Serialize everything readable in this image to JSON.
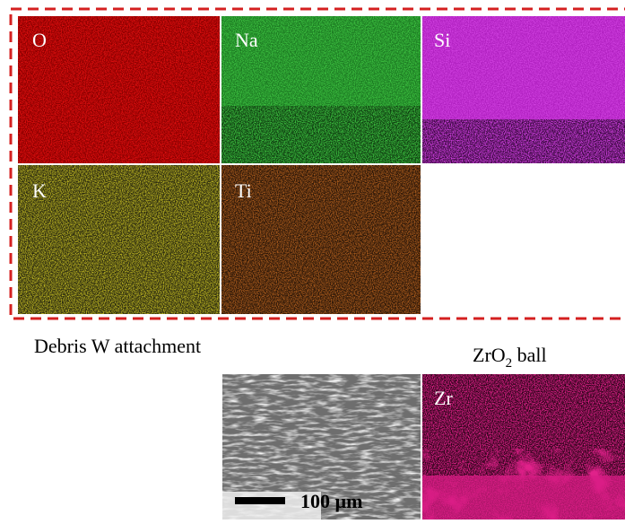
{
  "maps": [
    {
      "label": "O"
    },
    {
      "label": "Na"
    },
    {
      "label": "Si"
    },
    {
      "label": "K"
    },
    {
      "label": "Ti"
    }
  ],
  "caption_left": "Debris W attachment",
  "caption_right": {
    "prefix": "ZrO",
    "subscript": "2",
    "suffix": " ball"
  },
  "sem": {
    "scale_label": "100 µm"
  },
  "zr_map": {
    "label": "Zr"
  }
}
